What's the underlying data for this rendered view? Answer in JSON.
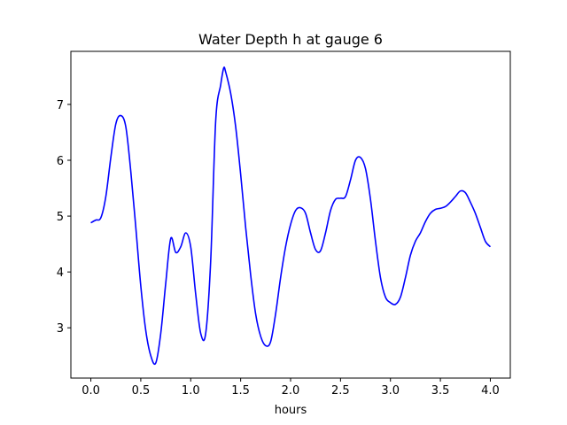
{
  "chart_data": {
    "type": "line",
    "title": "Water Depth h at gauge 6",
    "xlabel": "hours",
    "ylabel": "",
    "xlim": [
      -0.2,
      4.2
    ],
    "ylim": [
      2.1,
      7.95
    ],
    "xticks": [
      0.0,
      0.5,
      1.0,
      1.5,
      2.0,
      2.5,
      3.0,
      3.5,
      4.0
    ],
    "xtick_labels": [
      "0.0",
      "0.5",
      "1.0",
      "1.5",
      "2.0",
      "2.5",
      "3.0",
      "3.5",
      "4.0"
    ],
    "yticks": [
      3,
      4,
      5,
      6,
      7
    ],
    "ytick_labels": [
      "3",
      "4",
      "5",
      "6",
      "7"
    ],
    "grid": false,
    "legend": "none",
    "series": [
      {
        "color": "#0000ff",
        "x": [
          0.0,
          0.05,
          0.1,
          0.15,
          0.2,
          0.25,
          0.3,
          0.35,
          0.4,
          0.45,
          0.5,
          0.55,
          0.6,
          0.65,
          0.7,
          0.75,
          0.8,
          0.85,
          0.9,
          0.95,
          1.0,
          1.05,
          1.1,
          1.15,
          1.2,
          1.25,
          1.3,
          1.33,
          1.35,
          1.4,
          1.45,
          1.5,
          1.55,
          1.6,
          1.65,
          1.7,
          1.75,
          1.8,
          1.85,
          1.9,
          1.95,
          2.0,
          2.05,
          2.1,
          2.15,
          2.2,
          2.25,
          2.3,
          2.35,
          2.4,
          2.45,
          2.5,
          2.55,
          2.6,
          2.65,
          2.7,
          2.75,
          2.8,
          2.85,
          2.9,
          2.95,
          3.0,
          3.05,
          3.1,
          3.15,
          3.2,
          3.25,
          3.3,
          3.35,
          3.4,
          3.45,
          3.5,
          3.55,
          3.6,
          3.65,
          3.7,
          3.75,
          3.8,
          3.85,
          3.9,
          3.95,
          4.0
        ],
        "y": [
          4.88,
          4.93,
          4.97,
          5.35,
          6.05,
          6.65,
          6.8,
          6.6,
          5.8,
          4.8,
          3.75,
          2.95,
          2.5,
          2.37,
          2.9,
          3.8,
          4.6,
          4.35,
          4.45,
          4.7,
          4.45,
          3.6,
          2.9,
          2.9,
          4.2,
          6.7,
          7.35,
          7.65,
          7.58,
          7.2,
          6.6,
          5.75,
          4.8,
          3.95,
          3.25,
          2.85,
          2.68,
          2.75,
          3.25,
          3.9,
          4.45,
          4.85,
          5.1,
          5.15,
          5.05,
          4.7,
          4.4,
          4.38,
          4.7,
          5.1,
          5.3,
          5.32,
          5.35,
          5.65,
          6.0,
          6.05,
          5.85,
          5.3,
          4.55,
          3.9,
          3.55,
          3.45,
          3.42,
          3.55,
          3.9,
          4.3,
          4.55,
          4.7,
          4.9,
          5.05,
          5.12,
          5.14,
          5.17,
          5.25,
          5.35,
          5.45,
          5.42,
          5.25,
          5.05,
          4.8,
          4.55,
          4.45
        ]
      }
    ]
  }
}
